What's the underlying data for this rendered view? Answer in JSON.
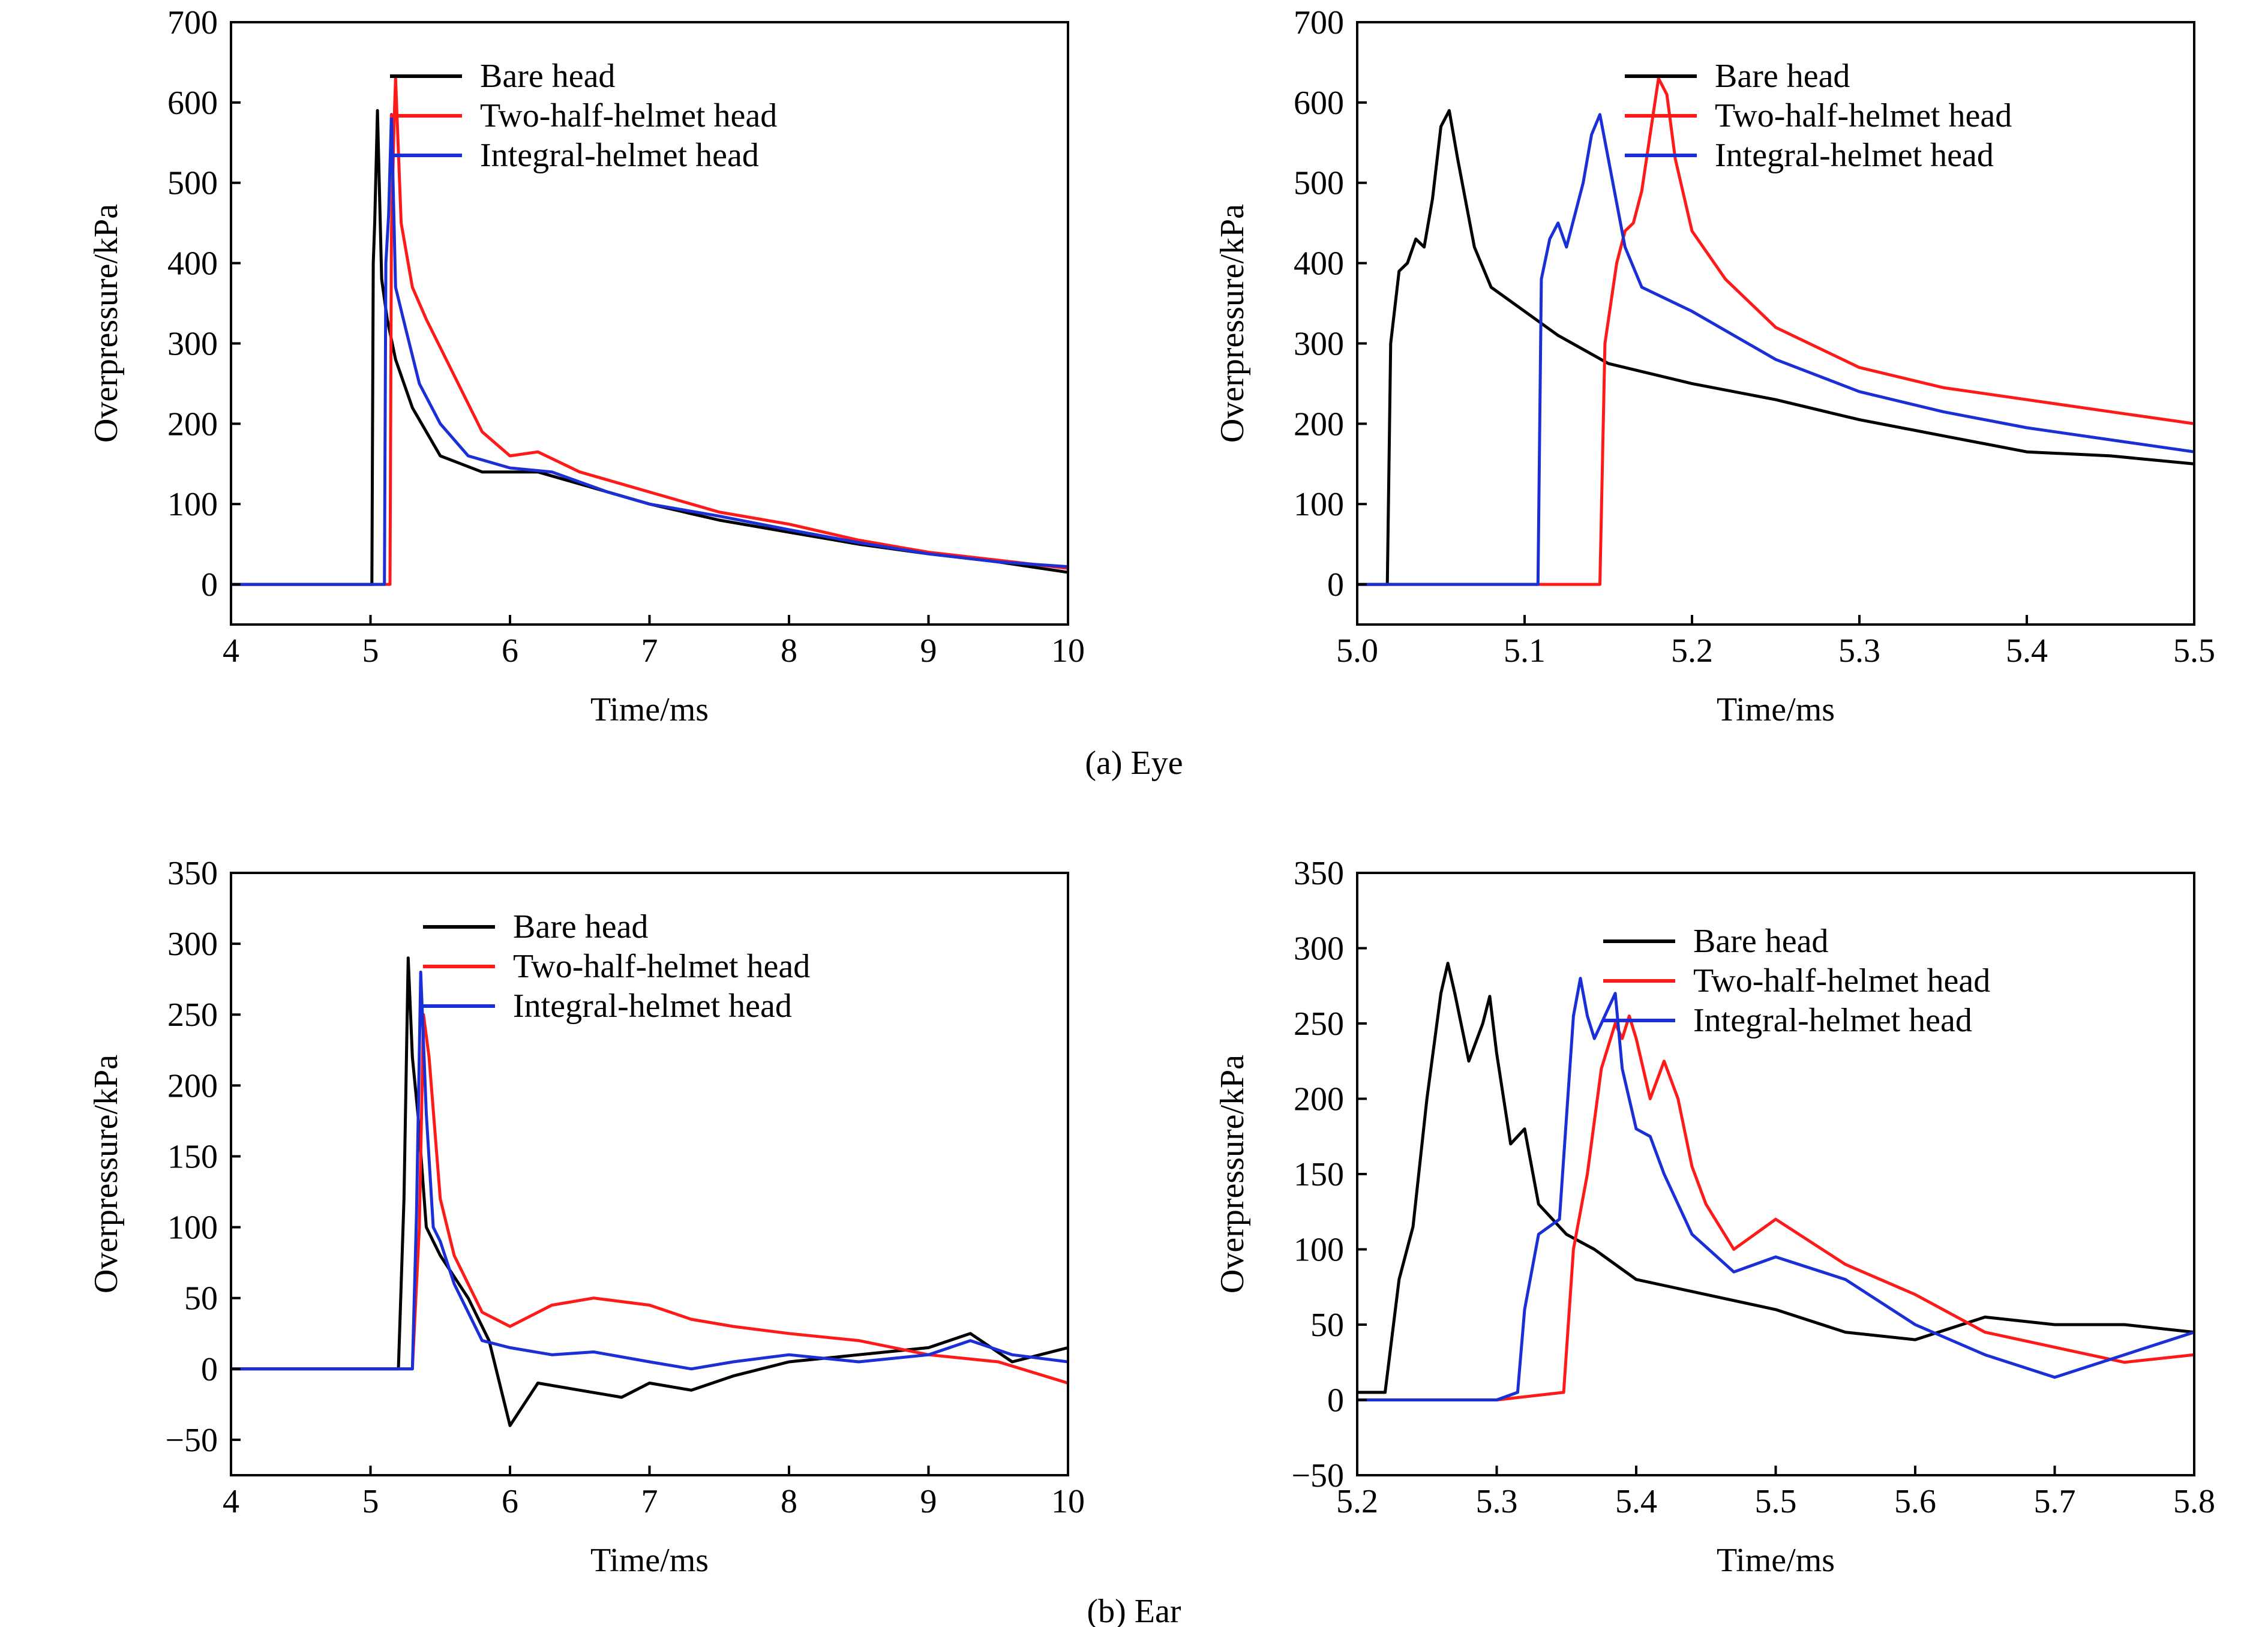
{
  "figure": {
    "caption_eye": "(a) Eye",
    "caption_ear": "(b) Ear"
  },
  "colors": {
    "bare": "#000000",
    "two_half": "#ff1a1a",
    "integral": "#1a2fd6"
  },
  "chart_data": [
    {
      "type": "line",
      "xlabel": "Time/ms",
      "ylabel": "Overpressure/kPa",
      "xlim": [
        4,
        10
      ],
      "ylim": [
        -50,
        700
      ],
      "xticks": [
        4,
        5,
        6,
        7,
        8,
        9,
        10
      ],
      "xtick_labels": [
        "4",
        "5",
        "6",
        "7",
        "8",
        "9",
        "10"
      ],
      "yticks": [
        0,
        100,
        200,
        300,
        400,
        500,
        600,
        700
      ],
      "ytick_labels": [
        "0",
        "100",
        "200",
        "300",
        "400",
        "500",
        "600",
        "700"
      ],
      "legend_position": "top-right",
      "series": [
        {
          "name": "Bare head",
          "color": "#000000",
          "x": [
            4.0,
            4.5,
            4.9,
            5.01,
            5.02,
            5.03,
            5.05,
            5.08,
            5.12,
            5.18,
            5.3,
            5.5,
            5.8,
            6.2,
            6.6,
            7.0,
            7.5,
            8.0,
            8.5,
            9.0,
            9.5,
            10.0
          ],
          "y": [
            0,
            0,
            0,
            0,
            400,
            450,
            590,
            380,
            330,
            280,
            220,
            160,
            140,
            140,
            120,
            100,
            80,
            65,
            50,
            38,
            28,
            15
          ]
        },
        {
          "name": "Two-half-helmet head",
          "color": "#ff1a1a",
          "x": [
            4.0,
            4.5,
            5.0,
            5.14,
            5.15,
            5.17,
            5.18,
            5.22,
            5.3,
            5.4,
            5.6,
            5.8,
            6.0,
            6.2,
            6.5,
            7.0,
            7.5,
            8.0,
            8.5,
            9.0,
            9.5,
            10.0
          ],
          "y": [
            0,
            0,
            0,
            0,
            440,
            580,
            630,
            450,
            370,
            330,
            260,
            190,
            160,
            165,
            140,
            115,
            90,
            75,
            55,
            40,
            30,
            20
          ]
        },
        {
          "name": "Integral-helmet head",
          "color": "#1a2fd6",
          "x": [
            4.0,
            4.5,
            5.0,
            5.1,
            5.11,
            5.13,
            5.15,
            5.18,
            5.25,
            5.35,
            5.5,
            5.7,
            6.0,
            6.3,
            6.7,
            7.0,
            7.5,
            8.0,
            8.5,
            9.0,
            9.5,
            10.0
          ],
          "y": [
            0,
            0,
            0,
            0,
            400,
            460,
            585,
            370,
            320,
            250,
            200,
            160,
            145,
            140,
            115,
            100,
            85,
            68,
            52,
            38,
            28,
            22
          ]
        }
      ]
    },
    {
      "type": "line",
      "xlabel": "Time/ms",
      "ylabel": "Overpressure/kPa",
      "xlim": [
        5.0,
        5.5
      ],
      "ylim": [
        -50,
        700
      ],
      "xticks": [
        5.0,
        5.1,
        5.2,
        5.3,
        5.4,
        5.5
      ],
      "xtick_labels": [
        "5.0",
        "5.1",
        "5.2",
        "5.3",
        "5.4",
        "5.5"
      ],
      "yticks": [
        0,
        100,
        200,
        300,
        400,
        500,
        600,
        700
      ],
      "ytick_labels": [
        "0",
        "100",
        "200",
        "300",
        "400",
        "500",
        "600",
        "700"
      ],
      "legend_position": "top-right",
      "series": [
        {
          "name": "Bare head",
          "color": "#000000",
          "x": [
            5.0,
            5.018,
            5.02,
            5.025,
            5.03,
            5.035,
            5.04,
            5.045,
            5.05,
            5.055,
            5.06,
            5.07,
            5.08,
            5.1,
            5.12,
            5.15,
            5.2,
            5.25,
            5.3,
            5.35,
            5.4,
            5.45,
            5.5
          ],
          "y": [
            0,
            0,
            300,
            390,
            400,
            430,
            420,
            480,
            570,
            590,
            530,
            420,
            370,
            340,
            310,
            275,
            250,
            230,
            205,
            185,
            165,
            160,
            150
          ]
        },
        {
          "name": "Two-half-helmet head",
          "color": "#ff1a1a",
          "x": [
            5.0,
            5.1,
            5.145,
            5.148,
            5.155,
            5.16,
            5.165,
            5.17,
            5.175,
            5.18,
            5.185,
            5.19,
            5.2,
            5.22,
            5.25,
            5.3,
            5.35,
            5.4,
            5.45,
            5.5
          ],
          "y": [
            0,
            0,
            0,
            300,
            400,
            440,
            450,
            490,
            560,
            630,
            610,
            530,
            440,
            380,
            320,
            270,
            245,
            230,
            215,
            200
          ]
        },
        {
          "name": "Integral-helmet head",
          "color": "#1a2fd6",
          "x": [
            5.0,
            5.05,
            5.108,
            5.11,
            5.115,
            5.12,
            5.125,
            5.13,
            5.135,
            5.14,
            5.145,
            5.15,
            5.16,
            5.17,
            5.2,
            5.25,
            5.3,
            5.35,
            5.4,
            5.45,
            5.5
          ],
          "y": [
            0,
            0,
            0,
            380,
            430,
            450,
            420,
            460,
            500,
            560,
            585,
            530,
            420,
            370,
            340,
            280,
            240,
            215,
            195,
            180,
            165
          ]
        }
      ]
    },
    {
      "type": "line",
      "xlabel": "Time/ms",
      "ylabel": "Overpressure/kPa",
      "xlim": [
        4,
        10
      ],
      "ylim": [
        -75,
        350
      ],
      "xticks": [
        4,
        5,
        6,
        7,
        8,
        9,
        10
      ],
      "xtick_labels": [
        "4",
        "5",
        "6",
        "7",
        "8",
        "9",
        "10"
      ],
      "yticks": [
        -50,
        0,
        50,
        100,
        150,
        200,
        250,
        300,
        350
      ],
      "ytick_labels": [
        "−50",
        "0",
        "50",
        "100",
        "150",
        "200",
        "250",
        "300",
        "350"
      ],
      "legend_position": "top-right",
      "series": [
        {
          "name": "Bare head",
          "color": "#000000",
          "x": [
            4.0,
            4.5,
            5.0,
            5.2,
            5.24,
            5.27,
            5.3,
            5.34,
            5.4,
            5.5,
            5.7,
            5.85,
            6.0,
            6.2,
            6.5,
            6.8,
            7.0,
            7.3,
            7.6,
            8.0,
            8.5,
            9.0,
            9.3,
            9.6,
            10.0
          ],
          "y": [
            0,
            0,
            0,
            0,
            120,
            290,
            220,
            180,
            100,
            80,
            50,
            20,
            -40,
            -10,
            -15,
            -20,
            -10,
            -15,
            -5,
            5,
            10,
            15,
            25,
            5,
            15
          ]
        },
        {
          "name": "Two-half-helmet head",
          "color": "#ff1a1a",
          "x": [
            4.0,
            4.5,
            5.0,
            5.3,
            5.35,
            5.38,
            5.42,
            5.5,
            5.6,
            5.8,
            6.0,
            6.3,
            6.6,
            7.0,
            7.3,
            7.6,
            8.0,
            8.5,
            9.0,
            9.5,
            10.0
          ],
          "y": [
            0,
            0,
            0,
            0,
            100,
            250,
            220,
            120,
            80,
            40,
            30,
            45,
            50,
            45,
            35,
            30,
            25,
            20,
            10,
            5,
            -10
          ]
        },
        {
          "name": "Integral-helmet head",
          "color": "#1a2fd6",
          "x": [
            4.0,
            4.5,
            5.0,
            5.3,
            5.33,
            5.36,
            5.4,
            5.45,
            5.5,
            5.6,
            5.8,
            6.0,
            6.3,
            6.6,
            7.0,
            7.3,
            7.6,
            8.0,
            8.5,
            9.0,
            9.3,
            9.6,
            10.0
          ],
          "y": [
            0,
            0,
            0,
            0,
            110,
            280,
            180,
            100,
            90,
            60,
            20,
            15,
            10,
            12,
            5,
            0,
            5,
            10,
            5,
            10,
            20,
            10,
            5
          ]
        }
      ]
    },
    {
      "type": "line",
      "xlabel": "Time/ms",
      "ylabel": "Overpressure/kPa",
      "xlim": [
        5.2,
        5.8
      ],
      "ylim": [
        -50,
        350
      ],
      "xticks": [
        5.2,
        5.3,
        5.4,
        5.5,
        5.6,
        5.7,
        5.8
      ],
      "xtick_labels": [
        "5.2",
        "5.3",
        "5.4",
        "5.5",
        "5.6",
        "5.7",
        "5.8"
      ],
      "yticks": [
        -50,
        0,
        50,
        100,
        150,
        200,
        250,
        300,
        350
      ],
      "ytick_labels": [
        "−50",
        "0",
        "50",
        "100",
        "150",
        "200",
        "250",
        "300",
        "350"
      ],
      "legend_position": "top-right",
      "series": [
        {
          "name": "Bare head",
          "color": "#000000",
          "x": [
            5.2,
            5.22,
            5.23,
            5.24,
            5.25,
            5.26,
            5.265,
            5.27,
            5.28,
            5.29,
            5.295,
            5.3,
            5.31,
            5.32,
            5.33,
            5.35,
            5.37,
            5.4,
            5.45,
            5.5,
            5.55,
            5.6,
            5.65,
            5.7,
            5.75,
            5.8
          ],
          "y": [
            5,
            5,
            80,
            115,
            200,
            270,
            290,
            270,
            225,
            250,
            268,
            230,
            170,
            180,
            130,
            110,
            100,
            80,
            70,
            60,
            45,
            40,
            55,
            50,
            50,
            45
          ]
        },
        {
          "name": "Two-half-helmet head",
          "color": "#ff1a1a",
          "x": [
            5.2,
            5.3,
            5.348,
            5.355,
            5.365,
            5.375,
            5.385,
            5.39,
            5.395,
            5.4,
            5.41,
            5.42,
            5.43,
            5.44,
            5.45,
            5.47,
            5.5,
            5.55,
            5.6,
            5.65,
            5.7,
            5.75,
            5.8
          ],
          "y": [
            0,
            0,
            5,
            100,
            150,
            220,
            250,
            240,
            255,
            240,
            200,
            225,
            200,
            155,
            130,
            100,
            120,
            90,
            70,
            45,
            35,
            25,
            30
          ]
        },
        {
          "name": "Integral-helmet head",
          "color": "#1a2fd6",
          "x": [
            5.2,
            5.3,
            5.315,
            5.32,
            5.33,
            5.345,
            5.355,
            5.36,
            5.365,
            5.37,
            5.38,
            5.385,
            5.39,
            5.4,
            5.41,
            5.42,
            5.44,
            5.47,
            5.5,
            5.55,
            5.6,
            5.65,
            5.7,
            5.75,
            5.8
          ],
          "y": [
            0,
            0,
            5,
            60,
            110,
            120,
            255,
            280,
            255,
            240,
            260,
            270,
            220,
            180,
            175,
            150,
            110,
            85,
            95,
            80,
            50,
            30,
            15,
            30,
            45
          ]
        }
      ]
    }
  ]
}
